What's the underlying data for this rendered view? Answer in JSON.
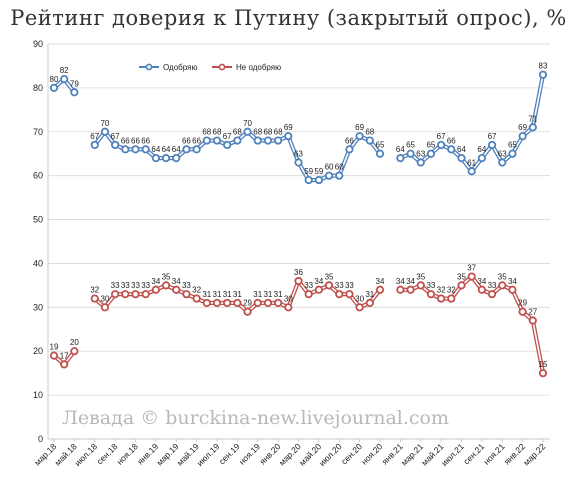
{
  "chart_data": {
    "type": "line",
    "title": "Рейтинг доверия к Путину (закрытый опрос), %",
    "ylim": [
      0,
      90
    ],
    "yticks": [
      0,
      10,
      20,
      30,
      40,
      50,
      60,
      70,
      80,
      90
    ],
    "grid": "horizontal",
    "legend": "top-left",
    "watermark": "Левада © burckina-new.livejournal.com",
    "x_tick_labels": [
      "мар.18",
      "май.18",
      "июл.18",
      "сен.18",
      "ноя.18",
      "янв.19",
      "мар.19",
      "май.19",
      "июл.19",
      "сен.19",
      "ноя.19",
      "янв.20",
      "мар.20",
      "май.20",
      "июл.20",
      "сен.20",
      "ноя.20",
      "янв.21",
      "мар.21",
      "май.21",
      "июл.21",
      "сен.21",
      "ноя.21",
      "янв.22",
      "мар.22"
    ],
    "series": [
      {
        "name": "Одобряю",
        "color": "#4f81bd",
        "values": [
          80,
          82,
          79,
          null,
          67,
          70,
          67,
          66,
          66,
          66,
          64,
          64,
          64,
          66,
          66,
          68,
          68,
          67,
          68,
          70,
          68,
          68,
          68,
          69,
          63,
          59,
          59,
          60,
          60,
          66,
          69,
          68,
          65,
          null,
          64,
          65,
          63,
          65,
          67,
          66,
          64,
          61,
          64,
          67,
          63,
          65,
          69,
          71,
          83
        ]
      },
      {
        "name": "Не одобряю",
        "color": "#c0504d",
        "values": [
          19,
          17,
          20,
          null,
          32,
          30,
          33,
          33,
          33,
          33,
          34,
          35,
          34,
          33,
          32,
          31,
          31,
          31,
          31,
          29,
          31,
          31,
          31,
          30,
          36,
          33,
          34,
          35,
          33,
          33,
          30,
          31,
          34,
          null,
          34,
          34,
          35,
          33,
          32,
          32,
          35,
          37,
          34,
          33,
          35,
          34,
          29,
          27,
          15
        ]
      }
    ]
  }
}
